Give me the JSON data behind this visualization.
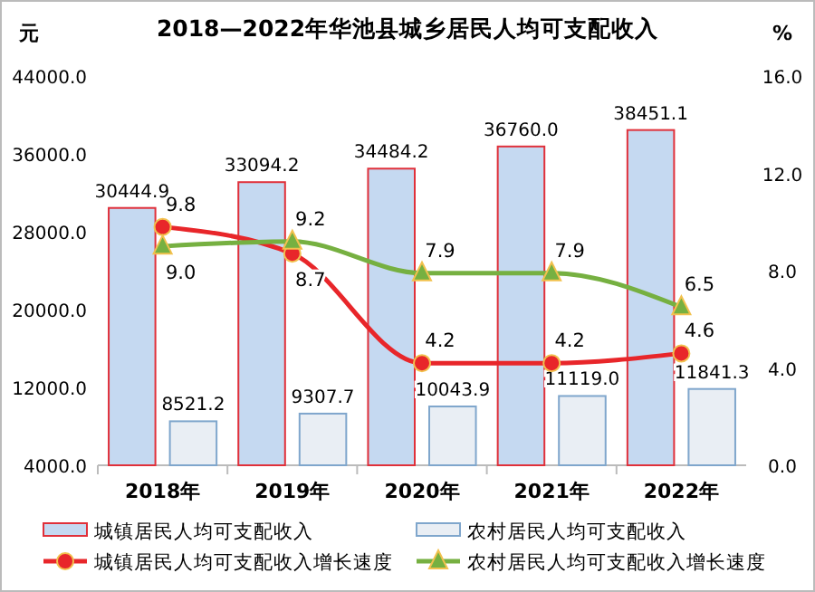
{
  "chart_data": {
    "type": "bar",
    "title": "2018—2022年华池县城乡居民人均可支配收入",
    "ylabel": "元",
    "y2label": "%",
    "categories": [
      "2018年",
      "2019年",
      "2020年",
      "2021年",
      "2022年"
    ],
    "series": [
      {
        "name": "城镇居民人均可支配收入",
        "color": "#c5d9f1",
        "values": [
          30444.9,
          33094.2,
          34484.2,
          36760.0,
          38451.1
        ],
        "value_labels": [
          "30444.9",
          "33094.2",
          "34484.2",
          "36760.0",
          "38451.1"
        ]
      },
      {
        "name": "农村居民人均可支配收入",
        "color": "#e9eef4",
        "values": [
          8521.2,
          9307.7,
          10043.9,
          11119.0,
          11841.3
        ],
        "value_labels": [
          "8521.2",
          "9307.7",
          "10043.9",
          "11119.0",
          "11841.3"
        ]
      },
      {
        "name": "城镇居民人均可支配收入增长速度",
        "type": "line",
        "axis": "y2",
        "marker": "circle",
        "color": "#e8262a",
        "values": [
          9.8,
          8.7,
          4.2,
          4.2,
          4.6
        ],
        "value_labels": [
          "9.8",
          "8.7",
          "4.2",
          "4.2",
          "4.6"
        ]
      },
      {
        "name": "农村居民人均可支配收入增长速度",
        "type": "line",
        "axis": "y2",
        "marker": "triangle",
        "color": "#76b041",
        "values": [
          9.0,
          9.2,
          7.9,
          7.9,
          6.5
        ],
        "value_labels": [
          "9.0",
          "9.2",
          "7.9",
          "7.9",
          "6.5"
        ]
      }
    ],
    "ylim": [
      4000,
      44000
    ],
    "yticks": [
      {
        "value": 4000,
        "label": "4000.0"
      },
      {
        "value": 12000,
        "label": "12000.0"
      },
      {
        "value": 20000,
        "label": "20000.0"
      },
      {
        "value": 28000,
        "label": "28000.0"
      },
      {
        "value": 36000,
        "label": "36000.0"
      },
      {
        "value": 44000,
        "label": "44000.0"
      }
    ],
    "y2lim": [
      0,
      16
    ],
    "y2ticks": [
      {
        "value": 0,
        "label": "0.0"
      },
      {
        "value": 4,
        "label": "4.0"
      },
      {
        "value": 8,
        "label": "8.0"
      },
      {
        "value": 12,
        "label": "12.0"
      },
      {
        "value": 16,
        "label": "16.0"
      }
    ],
    "grid": false,
    "legend": "bottom"
  }
}
